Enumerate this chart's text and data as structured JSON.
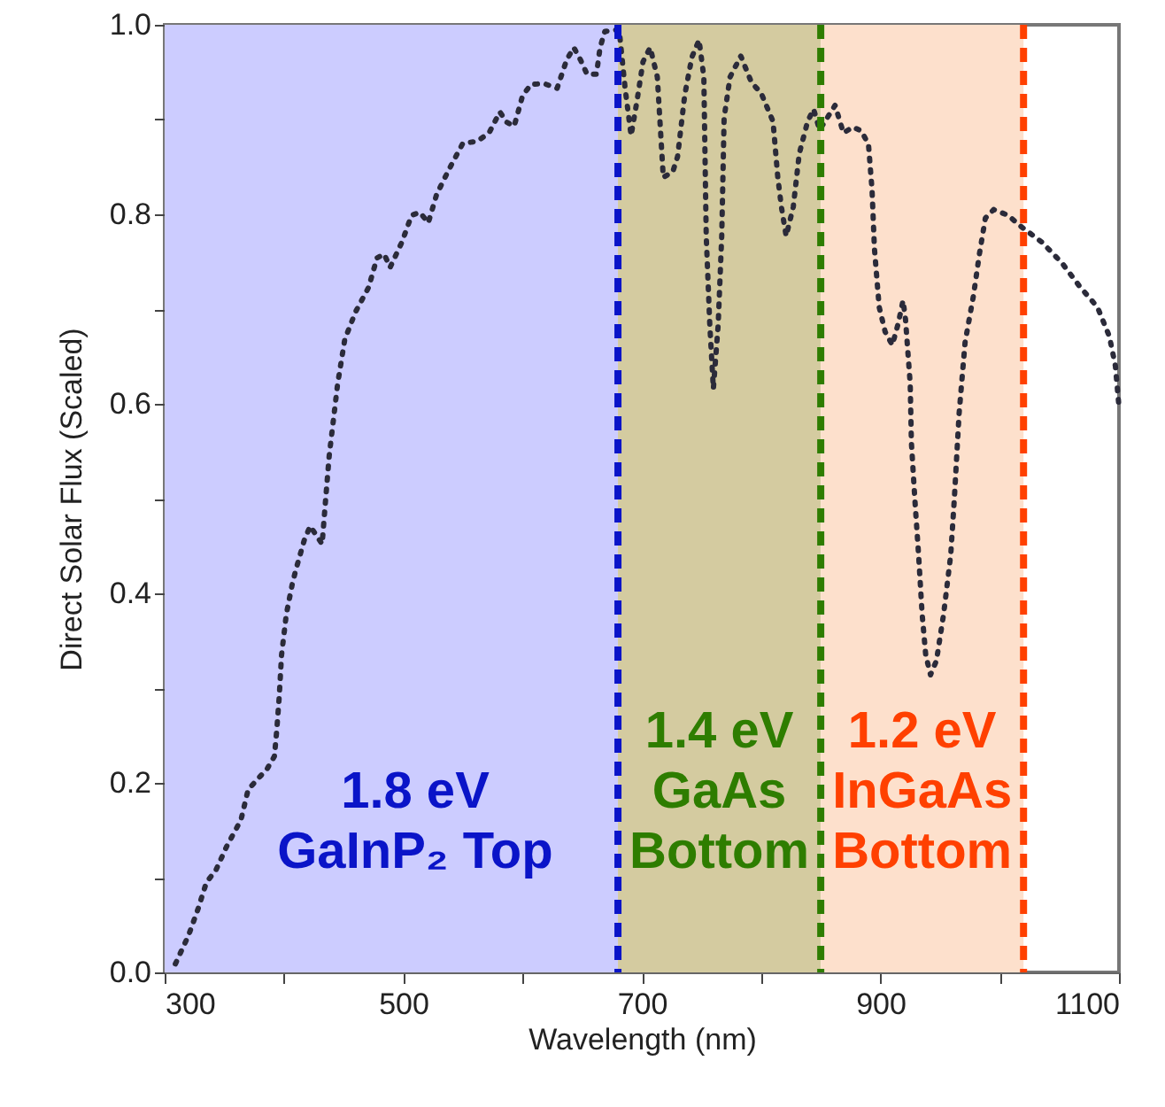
{
  "chart_data": {
    "type": "line",
    "xlabel": "Wavelength (nm)",
    "ylabel": "Direct Solar Flux (Scaled)",
    "xlim": [
      300,
      1100
    ],
    "ylim": [
      0,
      1.0
    ],
    "xticks": [
      300,
      {
        "value": 400,
        "label": null
      },
      500,
      {
        "value": 600,
        "label": null
      },
      700,
      {
        "value": 800,
        "label": null
      },
      900,
      {
        "value": 1000,
        "label": null
      },
      1100
    ],
    "yticks": [
      {
        "value": 0,
        "label": "0.0"
      },
      {
        "value": 0.1,
        "label": null
      },
      0.2,
      {
        "value": 0.3,
        "label": null
      },
      0.4,
      {
        "value": 0.5,
        "label": null
      },
      0.6,
      {
        "value": 0.7,
        "label": null
      },
      0.8,
      {
        "value": 0.9,
        "label": null
      },
      {
        "value": 1,
        "label": "1.0"
      }
    ],
    "grid": false,
    "line_style": "dotted",
    "marker": "none",
    "x": [
      309,
      320,
      328,
      335,
      343,
      352,
      364,
      370,
      386,
      392,
      394,
      396,
      398,
      402,
      407,
      410,
      417,
      422,
      432,
      435,
      438,
      441,
      445,
      451,
      460,
      471,
      478,
      484,
      489,
      499,
      507,
      514,
      521,
      528,
      539,
      550,
      562,
      572,
      581,
      587,
      593,
      600,
      607,
      618,
      629,
      637,
      643,
      649,
      654,
      662,
      665,
      669,
      681,
      686,
      691,
      696,
      701,
      707,
      713,
      718,
      726,
      730,
      736,
      742,
      748,
      752,
      754,
      757,
      760,
      764,
      767,
      769,
      774,
      783,
      792,
      800,
      810,
      814,
      817,
      821,
      827,
      832,
      839,
      844,
      849,
      862,
      869,
      877,
      884,
      890,
      893,
      895,
      899,
      904,
      910,
      915,
      919,
      921,
      925,
      926,
      929,
      932,
      935,
      938,
      942,
      947,
      953,
      959,
      962,
      966,
      971,
      978,
      983,
      988,
      995,
      1007,
      1018,
      1035,
      1052,
      1067,
      1082,
      1092,
      1097,
      1100
    ],
    "series": [
      {
        "color": "#2b2b3a",
        "values": [
          0.009,
          0.039,
          0.067,
          0.095,
          0.108,
          0.133,
          0.161,
          0.193,
          0.215,
          0.228,
          0.256,
          0.29,
          0.335,
          0.378,
          0.41,
          0.425,
          0.456,
          0.471,
          0.452,
          0.5,
          0.546,
          0.578,
          0.621,
          0.668,
          0.697,
          0.723,
          0.754,
          0.758,
          0.744,
          0.771,
          0.799,
          0.802,
          0.791,
          0.821,
          0.849,
          0.875,
          0.877,
          0.886,
          0.908,
          0.897,
          0.893,
          0.925,
          0.937,
          0.938,
          0.933,
          0.963,
          0.976,
          0.962,
          0.948,
          0.948,
          0.976,
          0.993,
          0.995,
          0.933,
          0.883,
          0.92,
          0.961,
          0.976,
          0.945,
          0.839,
          0.845,
          0.861,
          0.926,
          0.966,
          0.984,
          0.945,
          0.777,
          0.683,
          0.616,
          0.683,
          0.777,
          0.902,
          0.945,
          0.967,
          0.939,
          0.928,
          0.898,
          0.839,
          0.808,
          0.777,
          0.808,
          0.864,
          0.898,
          0.911,
          0.889,
          0.915,
          0.886,
          0.892,
          0.888,
          0.874,
          0.826,
          0.764,
          0.702,
          0.676,
          0.662,
          0.685,
          0.709,
          0.69,
          0.621,
          0.559,
          0.497,
          0.441,
          0.378,
          0.335,
          0.314,
          0.329,
          0.378,
          0.441,
          0.5,
          0.59,
          0.665,
          0.714,
          0.758,
          0.796,
          0.805,
          0.799,
          0.787,
          0.771,
          0.749,
          0.724,
          0.702,
          0.671,
          0.64,
          0.597
        ]
      }
    ],
    "bands": [
      {
        "axis": "x",
        "from": 300,
        "to": 680,
        "color": "#ccccff"
      },
      {
        "axis": "x",
        "from": 680,
        "to": 850,
        "color": "#d4cba0"
      },
      {
        "axis": "x",
        "from": 850,
        "to": 1020,
        "color": "#fde0cc"
      }
    ],
    "ref_lines": [
      {
        "axis": "x",
        "value": 680,
        "color": "#0a14c8",
        "line_style": "dashed",
        "label": "1.8 eV\nGaInP₂ Top"
      },
      {
        "axis": "x",
        "value": 850,
        "color": "#2e7d00",
        "line_style": "dashed",
        "label": "1.4 eV\nGaAs\nBottom"
      },
      {
        "axis": "x",
        "value": 1020,
        "color": "#ff4000",
        "line_style": "dashed",
        "label": "1.2 eV\nInGaAs\nBottom"
      }
    ]
  }
}
